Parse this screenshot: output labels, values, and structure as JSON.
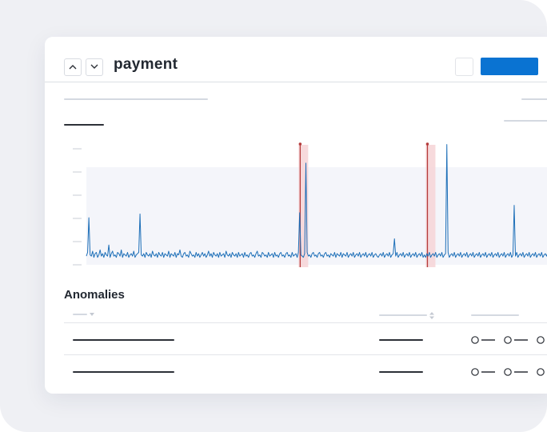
{
  "header": {
    "title": "payment"
  },
  "anomalies": {
    "title": "Anomalies"
  },
  "colors": {
    "primary": "#0a73d2",
    "series": "#1d6fb8",
    "anomaly": "#b53b3b",
    "band": "#f4f5fa"
  },
  "chart_data": {
    "type": "line",
    "title": "",
    "xlabel": "",
    "ylabel": "",
    "ylim": [
      0,
      5
    ],
    "grid": false,
    "series": [
      {
        "values": [
          0.35,
          0.5,
          1.9,
          0.4,
          0.35,
          0.55,
          0.3,
          0.45,
          0.5,
          0.3,
          0.4,
          0.6,
          0.35,
          0.45,
          0.3,
          0.5,
          0.4,
          0.35,
          0.8,
          0.3,
          0.45,
          0.55,
          0.35,
          0.4,
          0.3,
          0.5,
          0.45,
          0.35,
          0.6,
          0.3,
          0.45,
          0.4,
          0.35,
          0.5,
          0.3,
          0.4,
          0.45,
          0.35,
          0.55,
          0.3,
          0.4,
          0.45,
          0.5,
          2.05,
          0.4,
          0.35,
          0.45,
          0.3,
          0.5,
          0.4,
          0.35,
          0.45,
          0.3,
          0.55,
          0.4,
          0.35,
          0.45,
          0.3,
          0.5,
          0.4,
          0.35,
          0.5,
          0.3,
          0.45,
          0.4,
          0.35,
          0.55,
          0.3,
          0.45,
          0.4,
          0.35,
          0.5,
          0.3,
          0.45,
          0.4,
          0.6,
          0.35,
          0.3,
          0.45,
          0.5,
          0.35,
          0.4,
          0.3,
          0.55,
          0.45,
          0.35,
          0.4,
          0.3,
          0.5,
          0.35,
          0.45,
          0.3,
          0.4,
          0.5,
          0.35,
          0.45,
          0.3,
          0.4,
          0.55,
          0.35,
          0.45,
          0.3,
          0.5,
          0.4,
          0.35,
          0.45,
          0.3,
          0.5,
          0.35,
          0.4,
          0.45,
          0.3,
          0.55,
          0.4,
          0.35,
          0.45,
          0.3,
          0.5,
          0.4,
          0.35,
          0.45,
          0.3,
          0.5,
          0.35,
          0.4,
          0.45,
          0.3,
          0.5,
          0.35,
          0.4,
          0.3,
          0.45,
          0.5,
          0.35,
          0.4,
          0.3,
          0.45,
          0.55,
          0.35,
          0.4,
          0.3,
          0.5,
          0.45,
          0.35,
          0.4,
          0.3,
          0.5,
          0.35,
          0.4,
          0.45,
          0.3,
          0.5,
          0.35,
          0.4,
          0.3,
          0.45,
          0.5,
          0.35,
          0.4,
          0.3,
          0.45,
          0.5,
          0.35,
          0.4,
          0.3,
          0.5,
          0.35,
          0.4,
          0.45,
          0.3,
          0.5,
          2.1,
          0.4,
          0.35,
          0.3,
          0.45,
          4.1,
          0.5,
          0.35,
          0.4,
          0.3,
          0.45,
          0.5,
          0.35,
          0.4,
          0.3,
          0.45,
          0.5,
          0.35,
          0.4,
          0.3,
          0.45,
          0.5,
          0.35,
          0.4,
          0.3,
          0.45,
          0.4,
          0.35,
          0.5,
          0.3,
          0.45,
          0.4,
          0.35,
          0.5,
          0.3,
          0.45,
          0.4,
          0.35,
          0.5,
          0.3,
          0.4,
          0.45,
          0.35,
          0.5,
          0.3,
          0.4,
          0.45,
          0.35,
          0.5,
          0.3,
          0.4,
          0.45,
          0.35,
          0.5,
          0.3,
          0.4,
          0.45,
          0.35,
          0.5,
          0.3,
          0.4,
          0.45,
          0.35,
          0.3,
          0.4,
          0.45,
          0.35,
          0.5,
          0.3,
          0.4,
          0.45,
          0.35,
          0.5,
          0.3,
          0.4,
          0.45,
          1.05,
          0.35,
          0.5,
          0.3,
          0.4,
          0.45,
          0.35,
          0.5,
          0.3,
          0.4,
          0.45,
          0.35,
          0.5,
          0.3,
          0.4,
          0.45,
          0.35,
          0.5,
          0.3,
          0.4,
          0.45,
          0.35,
          0.5,
          0.3,
          0.4,
          0.3,
          0.45,
          0.35,
          0.5,
          0.3,
          0.4,
          0.45,
          0.35,
          0.5,
          0.3,
          0.4,
          0.45,
          0.35,
          0.5,
          0.3,
          0.4,
          0.45,
          4.85,
          0.5,
          0.3,
          0.4,
          0.45,
          0.35,
          0.5,
          0.3,
          0.4,
          0.45,
          0.35,
          0.5,
          0.3,
          0.4,
          0.45,
          0.35,
          0.5,
          0.3,
          0.4,
          0.45,
          0.35,
          0.5,
          0.3,
          0.4,
          0.45,
          0.35,
          0.5,
          0.3,
          0.4,
          0.45,
          0.35,
          0.5,
          0.3,
          0.4,
          0.45,
          0.35,
          0.5,
          0.3,
          0.4,
          0.45,
          0.35,
          0.5,
          0.3,
          0.4,
          0.45,
          0.35,
          0.5,
          0.3,
          0.4,
          0.45,
          0.35,
          0.5,
          0.3,
          0.4,
          2.4,
          0.35,
          0.5,
          0.3,
          0.4,
          0.45,
          0.35,
          0.5,
          0.3,
          0.4,
          0.45,
          0.35,
          0.5,
          0.3,
          0.4,
          0.45,
          0.35,
          0.5,
          0.3,
          0.4,
          0.45,
          0.35,
          0.5,
          0.3,
          0.4,
          0.45,
          0.35,
          0.5,
          0.3,
          0.4,
          0.45,
          0.35,
          0.5,
          0.3,
          0.4
        ]
      }
    ],
    "anomalies": [
      {
        "index": 174,
        "label": ""
      },
      {
        "index": 276,
        "label": ""
      }
    ]
  }
}
